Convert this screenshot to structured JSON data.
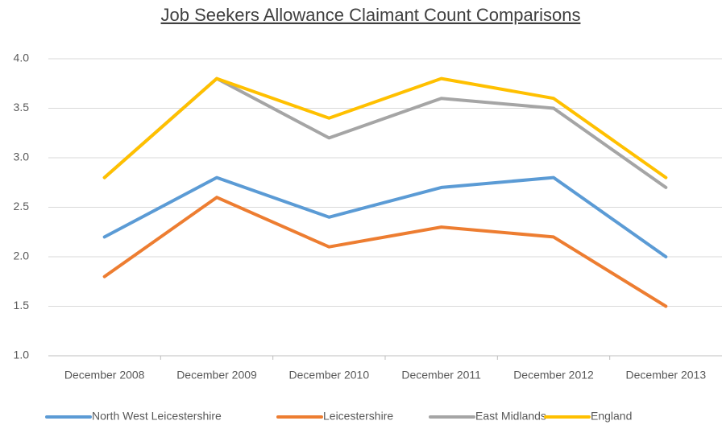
{
  "chart_data": {
    "type": "line",
    "title": "Job Seekers Allowance Claimant Count Comparisons",
    "categories": [
      "December 2008",
      "December 2009",
      "December 2010",
      "December 2011",
      "December 2012",
      "December 2013"
    ],
    "series": [
      {
        "name": "North West Leicestershire",
        "color": "#5b9bd5",
        "values": [
          2.2,
          2.8,
          2.4,
          2.7,
          2.8,
          2.0
        ]
      },
      {
        "name": "Leicestershire",
        "color": "#ed7d31",
        "values": [
          1.8,
          2.6,
          2.1,
          2.3,
          2.2,
          1.5
        ]
      },
      {
        "name": "East Midlands",
        "color": "#a5a5a5",
        "values": [
          2.8,
          3.8,
          3.2,
          3.6,
          3.5,
          2.7
        ]
      },
      {
        "name": "England",
        "color": "#ffc000",
        "values": [
          2.8,
          3.8,
          3.4,
          3.8,
          3.6,
          2.8
        ]
      }
    ],
    "ylim": [
      1.0,
      4.0
    ],
    "yticks": [
      {
        "value": 1.0,
        "label": "1.0"
      },
      1.5,
      {
        "value": 2.0,
        "label": "2.0"
      },
      2.5,
      {
        "value": 3.0,
        "label": "3.0"
      },
      3.5,
      {
        "value": 4.0,
        "label": "4.0"
      }
    ],
    "grid": true,
    "legend": "bottom"
  }
}
